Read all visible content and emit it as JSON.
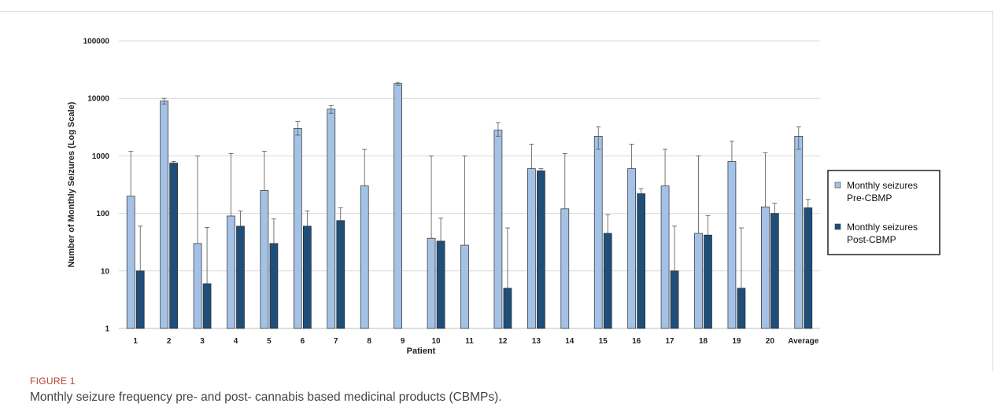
{
  "figure": {
    "label": "FIGURE 1",
    "caption": "Monthly seizure frequency pre- and post- cannabis based medicinal products (CBMPs)."
  },
  "colors": {
    "pre": "#a4c2e6",
    "post": "#1f4e79",
    "grid": "#d9d9d9",
    "error": "#555555"
  },
  "chart_data": {
    "type": "bar",
    "scale": "log",
    "grid": true,
    "legend_position": "right",
    "xlabel": "Patient",
    "ylabel": "Number of Monthly Seizures (Log Scale)",
    "ylim": [
      1,
      100000
    ],
    "yticks": [
      1,
      10,
      100,
      1000,
      10000,
      100000
    ],
    "ytick_labels": [
      "1",
      "10",
      "100",
      "1000",
      "10000",
      "100000"
    ],
    "categories": [
      "1",
      "2",
      "3",
      "4",
      "5",
      "6",
      "7",
      "8",
      "9",
      "10",
      "11",
      "12",
      "13",
      "14",
      "15",
      "16",
      "17",
      "18",
      "19",
      "20",
      "Average"
    ],
    "series": [
      {
        "name": "Monthly seizures Pre-CBMP",
        "legend_lines": [
          "Monthly seizures",
          "Pre-CBMP"
        ],
        "values": [
          200,
          9000,
          30,
          90,
          250,
          3000,
          6500,
          300,
          18000,
          37,
          28,
          2800,
          600,
          120,
          2200,
          600,
          300,
          45,
          800,
          130,
          2200
        ],
        "error_upper": [
          1200,
          10000,
          1000,
          1100,
          1200,
          4000,
          7500,
          1300,
          19000,
          1000,
          1000,
          3800,
          1600,
          1100,
          3200,
          1600,
          1300,
          1000,
          1800,
          1130,
          3200
        ],
        "error_lower": [
          null,
          8000,
          null,
          null,
          null,
          2300,
          5500,
          null,
          17000,
          null,
          null,
          2200,
          null,
          null,
          1300,
          null,
          null,
          null,
          null,
          null,
          1300
        ]
      },
      {
        "name": "Monthly seizures Post-CBMP",
        "legend_lines": [
          "Monthly seizures",
          "Post-CBMP"
        ],
        "values": [
          10,
          750,
          6,
          60,
          30,
          60,
          75,
          null,
          null,
          33,
          null,
          5,
          550,
          null,
          45,
          220,
          10,
          42,
          5,
          100,
          125
        ],
        "error_upper": [
          60,
          800,
          57,
          110,
          80,
          110,
          125,
          null,
          null,
          83,
          null,
          56,
          600,
          null,
          95,
          270,
          60,
          92,
          56,
          150,
          175
        ],
        "error_lower": [
          null,
          null,
          null,
          null,
          null,
          null,
          null,
          null,
          null,
          null,
          null,
          null,
          null,
          null,
          null,
          null,
          null,
          null,
          null,
          null,
          null
        ]
      }
    ]
  }
}
